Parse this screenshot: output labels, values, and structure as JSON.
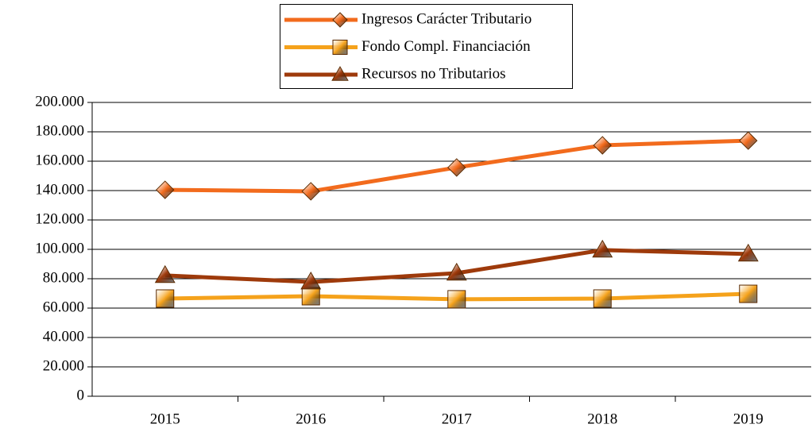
{
  "chart_data": {
    "type": "line",
    "categories": [
      "2015",
      "2016",
      "2017",
      "2018",
      "2019"
    ],
    "series": [
      {
        "name": "Ingresos Carácter Tributario",
        "color": "#f26b1d",
        "marker": "diamond",
        "values": [
          140500,
          139500,
          155700,
          170800,
          174000
        ]
      },
      {
        "name": "Fondo Compl. Financiación",
        "color": "#f5a21b",
        "marker": "square",
        "values": [
          66500,
          68100,
          66000,
          66500,
          69700
        ]
      },
      {
        "name": "Recursos no Tributarios",
        "color": "#9e3a0b",
        "marker": "triangle",
        "values": [
          82200,
          77800,
          83800,
          99500,
          96800
        ]
      }
    ],
    "ylim": [
      0,
      200000
    ],
    "yticks": [
      0,
      {
        "value": 20000,
        "label": "20.000"
      },
      {
        "value": 40000,
        "label": "40.000"
      },
      {
        "value": 60000,
        "label": "60.000"
      },
      {
        "value": 80000,
        "label": "80.000"
      },
      {
        "value": 100000,
        "label": "100.000"
      },
      {
        "value": 120000,
        "label": "120.000"
      },
      {
        "value": 140000,
        "label": "140.000"
      },
      {
        "value": 160000,
        "label": "160.000"
      },
      {
        "value": 180000,
        "label": "180.000"
      },
      {
        "value": 200000,
        "label": "200.000"
      }
    ],
    "grid": true,
    "legend": "top"
  }
}
